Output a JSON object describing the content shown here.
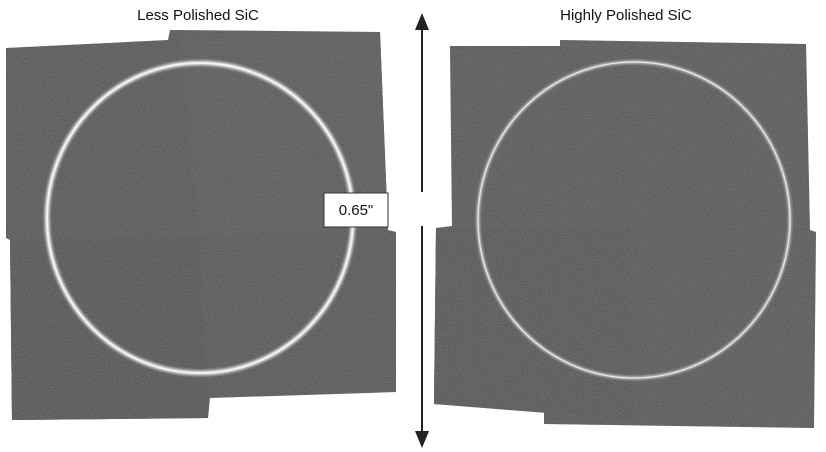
{
  "left_label": "Less Polished SiC",
  "right_label": "Highly Polished SiC",
  "dimension_label": "0.65\""
}
